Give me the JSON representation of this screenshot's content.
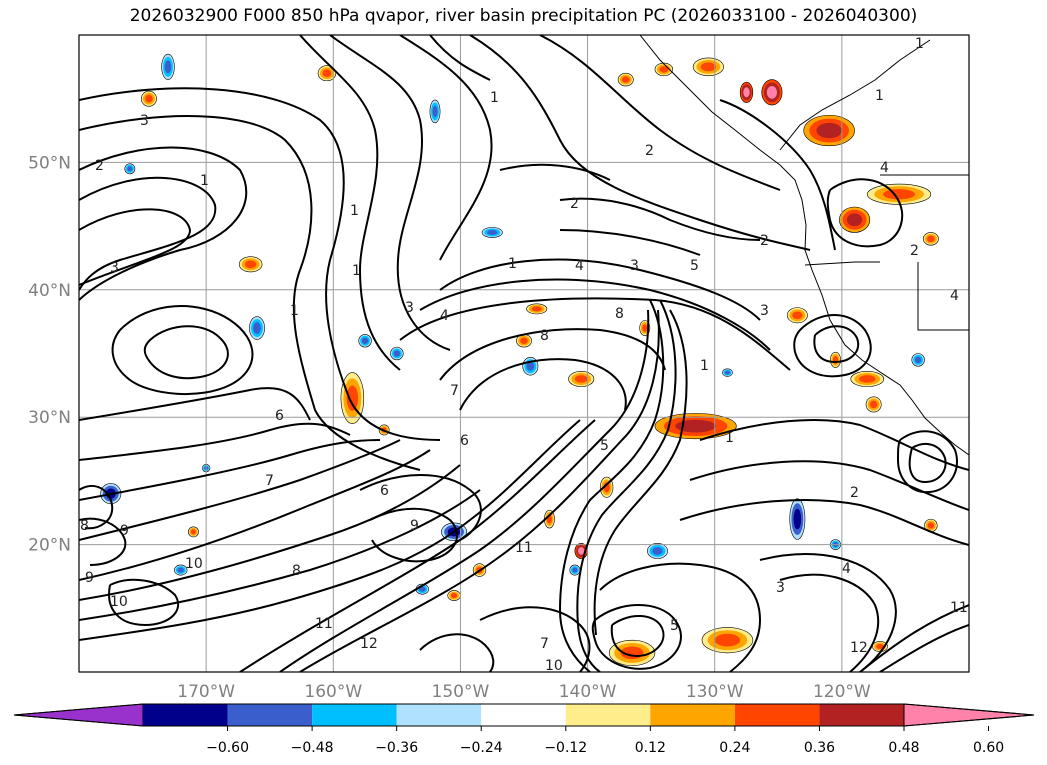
{
  "title": "2026032900 F000 850 hPa qvapor, river basin precipitation PC (2026033100 - 2026040300)",
  "map": {
    "projection": "plate-carree",
    "lon_range": [
      -180,
      -110
    ],
    "lat_range": [
      10,
      60
    ],
    "lat_ticks": [
      {
        "value": 20,
        "label": "20°N"
      },
      {
        "value": 30,
        "label": "30°N"
      },
      {
        "value": 40,
        "label": "40°N"
      },
      {
        "value": 50,
        "label": "50°N"
      }
    ],
    "lon_ticks": [
      {
        "value": -170,
        "label": "170°W"
      },
      {
        "value": -160,
        "label": "160°W"
      },
      {
        "value": -150,
        "label": "150°W"
      },
      {
        "value": -140,
        "label": "140°W"
      },
      {
        "value": -130,
        "label": "130°W"
      },
      {
        "value": -120,
        "label": "120°W"
      }
    ],
    "grid": true
  },
  "colorbar": {
    "extend": "both",
    "colors": [
      "#9932cc",
      "#00008b",
      "#3a5fcd",
      "#00bfff",
      "#b0e2ff",
      "#ffffff",
      "#ffec8b",
      "#ffa500",
      "#ff4500",
      "#b22222",
      "#ff82ab"
    ],
    "ticks": [
      "−0.60",
      "−0.48",
      "−0.36",
      "−0.24",
      "−0.12",
      "0.12",
      "0.24",
      "0.36",
      "0.48",
      "0.60"
    ]
  },
  "contour_labels": [
    "1",
    "2",
    "3",
    "4",
    "5",
    "6",
    "7",
    "8",
    "9",
    "10",
    "11",
    "12"
  ],
  "shading_blobs": [
    {
      "lon": -140.5,
      "lat": 33.0,
      "rx": 1.0,
      "ry": 0.6,
      "level": "0.36"
    },
    {
      "lon": -131.5,
      "lat": 29.3,
      "rx": 3.2,
      "ry": 1.0,
      "level": "0.48"
    },
    {
      "lon": -158.5,
      "lat": 31.5,
      "rx": 0.9,
      "ry": 2.0,
      "level": "0.36"
    },
    {
      "lon": -121.0,
      "lat": 52.5,
      "rx": 2.0,
      "ry": 1.2,
      "level": "0.48"
    },
    {
      "lon": -125.5,
      "lat": 55.5,
      "rx": 0.8,
      "ry": 1.0,
      "level": "0.60"
    },
    {
      "lon": -115.5,
      "lat": 47.5,
      "rx": 2.5,
      "ry": 0.8,
      "level": "0.36"
    },
    {
      "lon": -119.0,
      "lat": 45.5,
      "rx": 1.2,
      "ry": 1.0,
      "level": "0.48"
    },
    {
      "lon": -118.0,
      "lat": 33.0,
      "rx": 1.3,
      "ry": 0.6,
      "level": "0.36"
    },
    {
      "lon": -129.0,
      "lat": 12.5,
      "rx": 2.0,
      "ry": 1.0,
      "level": "0.36"
    },
    {
      "lon": -136.5,
      "lat": 11.5,
      "rx": 1.8,
      "ry": 1.0,
      "level": "0.36"
    },
    {
      "lon": -140.5,
      "lat": 19.5,
      "rx": 0.5,
      "ry": 0.6,
      "level": "0.60"
    },
    {
      "lon": -130.5,
      "lat": 57.5,
      "rx": 1.2,
      "ry": 0.7,
      "level": "0.36"
    },
    {
      "lon": -127.5,
      "lat": 55.5,
      "rx": 0.5,
      "ry": 0.8,
      "level": "0.60"
    },
    {
      "lon": -166.5,
      "lat": 42.0,
      "rx": 0.9,
      "ry": 0.6,
      "level": "0.36"
    },
    {
      "lon": -174.5,
      "lat": 55.0,
      "rx": 0.6,
      "ry": 0.6,
      "level": "0.36"
    },
    {
      "lon": -160.5,
      "lat": 57.0,
      "rx": 0.7,
      "ry": 0.6,
      "level": "0.36"
    },
    {
      "lon": -134.0,
      "lat": 57.3,
      "rx": 0.7,
      "ry": 0.5,
      "level": "0.36"
    },
    {
      "lon": -137.0,
      "lat": 56.5,
      "rx": 0.6,
      "ry": 0.5,
      "level": "0.36"
    },
    {
      "lon": -144.0,
      "lat": 38.5,
      "rx": 0.8,
      "ry": 0.4,
      "level": "0.36"
    },
    {
      "lon": -135.5,
      "lat": 37.0,
      "rx": 0.4,
      "ry": 0.6,
      "level": "0.36"
    },
    {
      "lon": -123.5,
      "lat": 38.0,
      "rx": 0.8,
      "ry": 0.6,
      "level": "0.36"
    },
    {
      "lon": -117.5,
      "lat": 31.0,
      "rx": 0.6,
      "ry": 0.6,
      "level": "0.36"
    },
    {
      "lon": -113.0,
      "lat": 44.0,
      "rx": 0.6,
      "ry": 0.5,
      "level": "0.36"
    },
    {
      "lon": -143.0,
      "lat": 22.0,
      "rx": 0.4,
      "ry": 0.7,
      "level": "0.36"
    },
    {
      "lon": -138.5,
      "lat": 24.5,
      "rx": 0.5,
      "ry": 0.8,
      "level": "0.36"
    },
    {
      "lon": -145.0,
      "lat": 36.0,
      "rx": 0.6,
      "ry": 0.5,
      "level": "0.36"
    },
    {
      "lon": -150.5,
      "lat": 16.0,
      "rx": 0.5,
      "ry": 0.4,
      "level": "0.36"
    },
    {
      "lon": -117.0,
      "lat": 12.0,
      "rx": 0.6,
      "ry": 0.4,
      "level": "0.36"
    },
    {
      "lon": -113.0,
      "lat": 21.5,
      "rx": 0.5,
      "ry": 0.5,
      "level": "0.36"
    },
    {
      "lon": -148.5,
      "lat": 18.0,
      "rx": 0.5,
      "ry": 0.5,
      "level": "0.36"
    },
    {
      "lon": -156.0,
      "lat": 29.0,
      "rx": 0.4,
      "ry": 0.4,
      "level": "0.36"
    },
    {
      "lon": -171.0,
      "lat": 21.0,
      "rx": 0.4,
      "ry": 0.4,
      "level": "0.36"
    },
    {
      "lon": -120.5,
      "lat": 34.5,
      "rx": 0.4,
      "ry": 0.6,
      "level": "0.36"
    },
    {
      "lon": -123.5,
      "lat": 22.0,
      "rx": 0.6,
      "ry": 1.6,
      "level": "-0.48"
    },
    {
      "lon": -155.0,
      "lat": 35.0,
      "rx": 0.5,
      "ry": 0.5,
      "level": "-0.36"
    },
    {
      "lon": -144.5,
      "lat": 34.0,
      "rx": 0.6,
      "ry": 0.7,
      "level": "-0.36"
    },
    {
      "lon": -141.0,
      "lat": 18.0,
      "rx": 0.4,
      "ry": 0.4,
      "level": "-0.36"
    },
    {
      "lon": -134.5,
      "lat": 19.5,
      "rx": 0.8,
      "ry": 0.6,
      "level": "-0.36"
    },
    {
      "lon": -150.5,
      "lat": 21.0,
      "rx": 1.0,
      "ry": 0.7,
      "level": "-0.48"
    },
    {
      "lon": -166.0,
      "lat": 37.0,
      "rx": 0.6,
      "ry": 0.9,
      "level": "-0.36"
    },
    {
      "lon": -173.0,
      "lat": 57.5,
      "rx": 0.5,
      "ry": 1.0,
      "level": "-0.36"
    },
    {
      "lon": -152.0,
      "lat": 54.0,
      "rx": 0.4,
      "ry": 0.9,
      "level": "-0.36"
    },
    {
      "lon": -147.5,
      "lat": 44.5,
      "rx": 0.8,
      "ry": 0.4,
      "level": "-0.36"
    },
    {
      "lon": -177.5,
      "lat": 24.0,
      "rx": 0.8,
      "ry": 0.8,
      "level": "-0.48"
    },
    {
      "lon": -157.5,
      "lat": 36.0,
      "rx": 0.5,
      "ry": 0.5,
      "level": "-0.36"
    },
    {
      "lon": -172.0,
      "lat": 18.0,
      "rx": 0.5,
      "ry": 0.4,
      "level": "-0.36"
    },
    {
      "lon": -153.0,
      "lat": 16.5,
      "rx": 0.5,
      "ry": 0.4,
      "level": "-0.36"
    },
    {
      "lon": -120.5,
      "lat": 20.0,
      "rx": 0.4,
      "ry": 0.4,
      "level": "-0.36"
    },
    {
      "lon": -114.0,
      "lat": 34.5,
      "rx": 0.5,
      "ry": 0.5,
      "level": "-0.36"
    },
    {
      "lon": -176.0,
      "lat": 49.5,
      "rx": 0.4,
      "ry": 0.4,
      "level": "-0.36"
    },
    {
      "lon": -129.0,
      "lat": 33.5,
      "rx": 0.4,
      "ry": 0.3,
      "level": "-0.36"
    },
    {
      "lon": -170.0,
      "lat": 26.0,
      "rx": 0.3,
      "ry": 0.3,
      "level": "-0.36"
    }
  ]
}
